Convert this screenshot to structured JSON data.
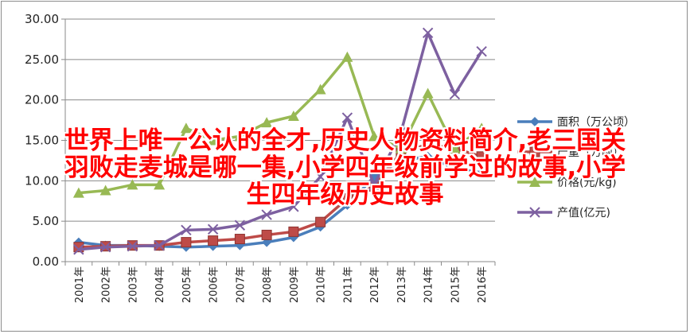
{
  "chart_data": {
    "type": "line",
    "categories": [
      "2001年",
      "2002年",
      "2003年",
      "2004年",
      "2005年",
      "2006年",
      "2007年",
      "2008年",
      "2009年",
      "2010年",
      "2011年",
      "2012年",
      "2013年",
      "2014年",
      "2015年",
      "2016年"
    ],
    "ylim": [
      0,
      30
    ],
    "yticks": [
      "0.00",
      "5.00",
      "10.00",
      "15.00",
      "20.00",
      "25.00",
      "30.00"
    ],
    "grid": true,
    "legend": "right",
    "series": [
      {
        "name": "面积（万公顷）",
        "color": "#4a7ebb",
        "marker": "diamond",
        "values": [
          2.4,
          2.0,
          2.0,
          1.9,
          1.8,
          1.9,
          2.0,
          2.4,
          3.0,
          4.3,
          7.0,
          10.5,
          12.5,
          13.0,
          11.5,
          11.0
        ]
      },
      {
        "name": "产量（万吨）",
        "color": "#be4b48",
        "marker": "square",
        "values": [
          1.8,
          1.9,
          2.0,
          2.0,
          2.4,
          2.6,
          2.8,
          3.3,
          3.7,
          4.9,
          7.8,
          9.3,
          13.5,
          14.5,
          14.0,
          13.0
        ]
      },
      {
        "name": "价格(元/kg)",
        "color": "#98b954",
        "marker": "triangle",
        "values": [
          8.5,
          8.8,
          9.5,
          9.5,
          16.5,
          15.0,
          15.5,
          17.2,
          18.0,
          21.3,
          25.3,
          15.5,
          14.0,
          20.8,
          14.0,
          16.5
        ]
      },
      {
        "name": "产值(亿元)",
        "color": "#7d60a0",
        "marker": "x",
        "values": [
          1.5,
          1.8,
          1.9,
          2.0,
          3.9,
          4.0,
          4.5,
          5.8,
          6.8,
          10.5,
          17.8,
          9.5,
          16.0,
          28.3,
          20.7,
          26.0
        ]
      }
    ]
  },
  "overlay": {
    "line1": "世界上唯一公认的全才,历史人物资料简介,老三国关",
    "line2": "羽败走麦城是哪一集,小学四年级前学过的故事,小学",
    "line3": "生四年级历史故事"
  }
}
